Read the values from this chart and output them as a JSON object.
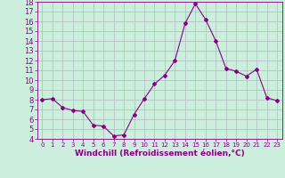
{
  "x": [
    0,
    1,
    2,
    3,
    4,
    5,
    6,
    7,
    8,
    9,
    10,
    11,
    12,
    13,
    14,
    15,
    16,
    17,
    18,
    19,
    20,
    21,
    22,
    23
  ],
  "y": [
    8.0,
    8.1,
    7.2,
    6.9,
    6.8,
    5.4,
    5.3,
    4.3,
    4.4,
    6.5,
    8.1,
    9.6,
    10.5,
    12.0,
    15.8,
    17.8,
    16.2,
    14.0,
    11.2,
    10.9,
    10.4,
    11.1,
    8.2,
    7.9
  ],
  "line_color": "#880088",
  "marker": "D",
  "marker_size": 2,
  "bg_color": "#cceedd",
  "grid_color": "#aabbbb",
  "xlabel": "Windchill (Refroidissement éolien,°C)",
  "xlabel_fontsize": 6.5,
  "tick_fontsize": 6,
  "ylim": [
    4,
    18
  ],
  "xlim": [
    -0.5,
    23.5
  ],
  "yticks": [
    4,
    5,
    6,
    7,
    8,
    9,
    10,
    11,
    12,
    13,
    14,
    15,
    16,
    17,
    18
  ],
  "xticks": [
    0,
    1,
    2,
    3,
    4,
    5,
    6,
    7,
    8,
    9,
    10,
    11,
    12,
    13,
    14,
    15,
    16,
    17,
    18,
    19,
    20,
    21,
    22,
    23
  ]
}
